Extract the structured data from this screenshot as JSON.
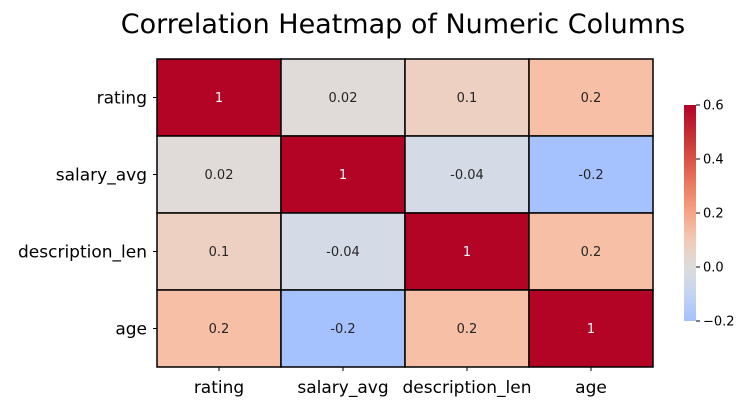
{
  "chart_data": {
    "type": "heatmap",
    "title": "Correlation Heatmap of Numeric Columns",
    "rows": [
      "rating",
      "salary_avg",
      "description_len",
      "age"
    ],
    "columns": [
      "rating",
      "salary_avg",
      "description_len",
      "age"
    ],
    "values": [
      [
        1,
        0.02,
        0.1,
        0.2
      ],
      [
        0.02,
        1,
        -0.04,
        -0.2
      ],
      [
        0.1,
        -0.04,
        1,
        0.2
      ],
      [
        0.2,
        -0.2,
        0.2,
        1
      ]
    ],
    "cell_labels": [
      [
        "1",
        "0.02",
        "0.1",
        "0.2"
      ],
      [
        "0.02",
        "1",
        "-0.04",
        "-0.2"
      ],
      [
        "0.1",
        "-0.04",
        "1",
        "0.2"
      ],
      [
        "0.2",
        "-0.2",
        "0.2",
        "1"
      ]
    ],
    "colormap": "coolwarm",
    "color_range": [
      -0.2,
      0.6
    ],
    "colorbar": {
      "ticks": [
        -0.2,
        0.0,
        0.2,
        0.4,
        0.6
      ],
      "tick_labels": [
        "−0.2",
        "0.0",
        "0.2",
        "0.4",
        "0.6"
      ]
    },
    "cell_border_color": "#000000"
  }
}
